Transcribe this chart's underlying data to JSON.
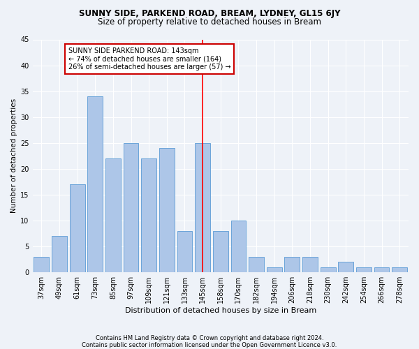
{
  "title1": "SUNNY SIDE, PARKEND ROAD, BREAM, LYDNEY, GL15 6JY",
  "title2": "Size of property relative to detached houses in Bream",
  "xlabel": "Distribution of detached houses by size in Bream",
  "ylabel": "Number of detached properties",
  "categories": [
    "37sqm",
    "49sqm",
    "61sqm",
    "73sqm",
    "85sqm",
    "97sqm",
    "109sqm",
    "121sqm",
    "133sqm",
    "145sqm",
    "158sqm",
    "170sqm",
    "182sqm",
    "194sqm",
    "206sqm",
    "218sqm",
    "230sqm",
    "242sqm",
    "254sqm",
    "266sqm",
    "278sqm"
  ],
  "values": [
    3,
    7,
    17,
    34,
    22,
    25,
    22,
    24,
    8,
    25,
    8,
    10,
    3,
    1,
    3,
    3,
    1,
    2,
    1,
    1,
    1
  ],
  "bar_color": "#adc6e8",
  "bar_edge_color": "#5b9bd5",
  "highlight_index": 9,
  "annotation_line1": "SUNNY SIDE PARKEND ROAD: 143sqm",
  "annotation_line2": "← 74% of detached houses are smaller (164)",
  "annotation_line3": "26% of semi-detached houses are larger (57) →",
  "annotation_box_color": "#ffffff",
  "annotation_box_edge": "#cc0000",
  "ylim": [
    0,
    45
  ],
  "yticks": [
    0,
    5,
    10,
    15,
    20,
    25,
    30,
    35,
    40,
    45
  ],
  "footer1": "Contains HM Land Registry data © Crown copyright and database right 2024.",
  "footer2": "Contains public sector information licensed under the Open Government Licence v3.0.",
  "bg_color": "#eef2f8",
  "grid_color": "#ffffff",
  "title1_fontsize": 8.5,
  "title2_fontsize": 8.5,
  "ylabel_fontsize": 7.5,
  "xlabel_fontsize": 8.0,
  "tick_fontsize": 7.0,
  "annotation_fontsize": 7.0,
  "footer_fontsize": 6.0
}
